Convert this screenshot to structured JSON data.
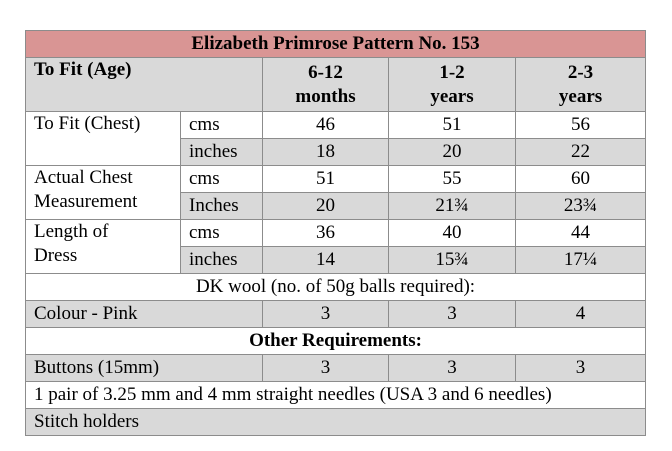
{
  "table": {
    "title": "Elizabeth Primrose Pattern No. 153",
    "header": [
      "To Fit (Age)",
      "6-12\nmonths",
      "1-2\nyears",
      "2-3\nyears"
    ],
    "measurements": [
      {
        "label": "To Fit (Chest)",
        "rows": [
          [
            "cms",
            "46",
            "51",
            "56"
          ],
          [
            "inches",
            "18",
            "20",
            "22"
          ]
        ]
      },
      {
        "label": "Actual Chest\nMeasurement",
        "rows": [
          [
            "cms",
            "51",
            "55",
            "60"
          ],
          [
            "Inches",
            "20",
            "21¾",
            "23¾"
          ]
        ]
      },
      {
        "label": "Length of\nDress",
        "rows": [
          [
            "cms",
            "36",
            "40",
            "44"
          ],
          [
            "inches",
            "14",
            "15¾",
            "17¼"
          ]
        ]
      }
    ],
    "wool_heading": "DK wool (no. of 50g balls required):",
    "wool": [
      "Colour - Pink",
      "3",
      "3",
      "4"
    ],
    "other_heading": "Other Requirements:",
    "buttons": [
      "Buttons (15mm)",
      "3",
      "3",
      "3"
    ],
    "needles": "1 pair of 3.25 mm and 4 mm straight needles (USA 3 and 6 needles)",
    "stitch": "Stitch holders"
  }
}
